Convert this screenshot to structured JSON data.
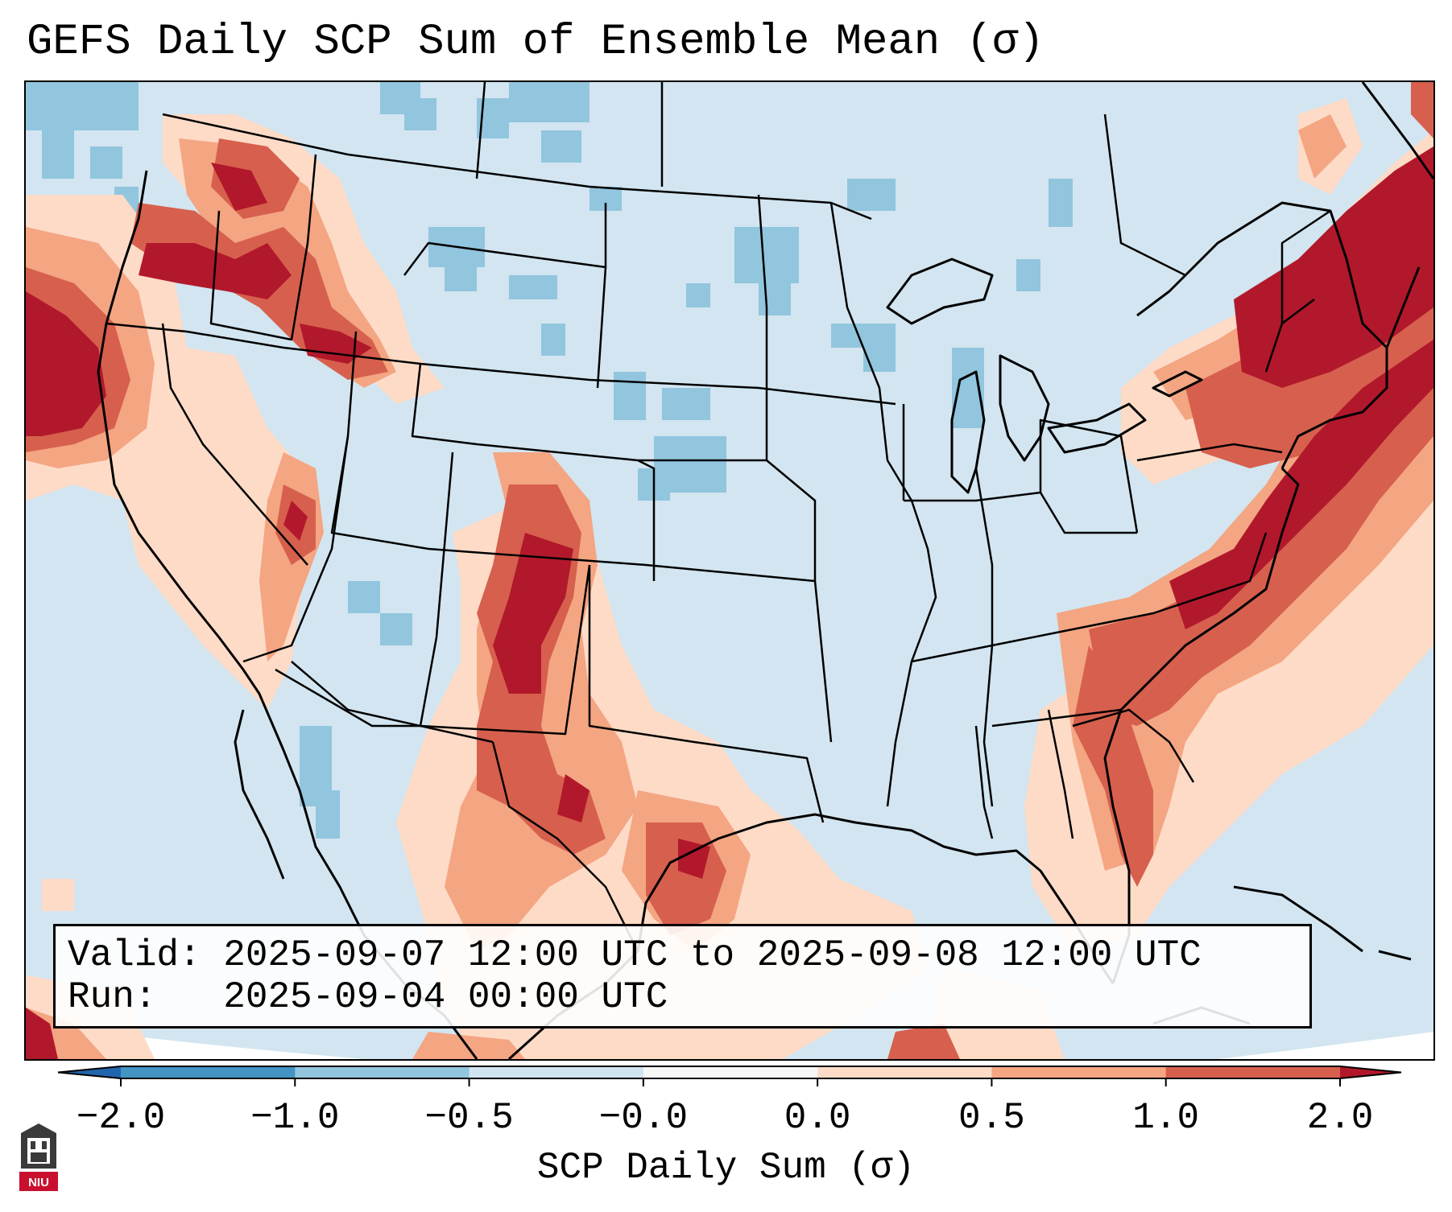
{
  "title": "GEFS Daily SCP Sum of Ensemble Mean (σ)",
  "info": {
    "valid_line": "Valid: 2025-09-07 12:00 UTC to 2025-09-08 12:00 UTC",
    "run_line": "Run:   2025-09-04 00:00 UTC"
  },
  "colorbar": {
    "label": "SCP Daily Sum (σ)",
    "ticks": [
      "−2.0",
      "−1.0",
      "−0.5",
      "−0.0",
      "0.0",
      "0.5",
      "1.0",
      "2.0"
    ],
    "bins": [
      {
        "range": "< -2.0",
        "color": "#2166ac"
      },
      {
        "range": "-2.0 to -1.0",
        "color": "#4393c3"
      },
      {
        "range": "-1.0 to -0.5",
        "color": "#92c5de"
      },
      {
        "range": "-0.5 to -0.0",
        "color": "#d1e5f0"
      },
      {
        "range": "-0.0 to 0.0",
        "color": "#f7f7f7"
      },
      {
        "range": "0.0 to 0.5",
        "color": "#fddbc7"
      },
      {
        "range": "0.5 to 1.0",
        "color": "#f4a582"
      },
      {
        "range": "1.0 to 2.0",
        "color": "#d6604d"
      },
      {
        "range": "> 2.0",
        "color": "#b2182b"
      }
    ]
  },
  "map": {
    "region": "Continental United States",
    "background_color": "#d2e5f0",
    "feature_icons": [
      "state-borders",
      "country-borders",
      "coastlines"
    ]
  },
  "logo": {
    "text": "NIU",
    "color": "#c8102e"
  }
}
